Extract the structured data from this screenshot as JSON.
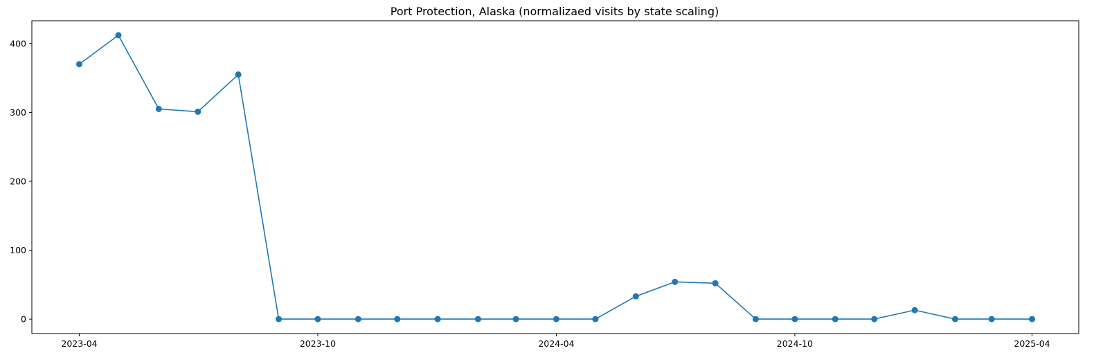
{
  "chart_data": {
    "type": "line",
    "title": "Port Protection, Alaska (normalizaed visits by state scaling)",
    "xlabel": "",
    "ylabel": "",
    "x": [
      "2023-04-01",
      "2023-05-01",
      "2023-06-01",
      "2023-07-01",
      "2023-08-01",
      "2023-09-01",
      "2023-10-01",
      "2023-11-01",
      "2023-12-01",
      "2024-01-01",
      "2024-02-01",
      "2024-03-01",
      "2024-04-01",
      "2024-05-01",
      "2024-06-01",
      "2024-07-01",
      "2024-08-01",
      "2024-09-01",
      "2024-10-01",
      "2024-11-01",
      "2024-12-01",
      "2025-01-01",
      "2025-02-01",
      "2025-03-01",
      "2025-04-01"
    ],
    "series": [
      {
        "values": [
          370,
          412,
          305,
          301,
          355,
          0,
          0,
          0,
          0,
          0,
          0,
          0,
          0,
          0,
          33,
          54,
          52,
          0,
          0,
          0,
          0,
          13,
          0,
          0,
          0
        ]
      }
    ],
    "xticks": [
      "2023-04",
      "2023-10",
      "2024-04",
      "2024-10",
      "2025-04"
    ],
    "yticks": [
      "0",
      "100",
      "200",
      "300",
      "400"
    ],
    "ylim": [
      -21,
      433
    ],
    "grid": false,
    "marker": "circle",
    "line_color": "#1f77b4"
  }
}
